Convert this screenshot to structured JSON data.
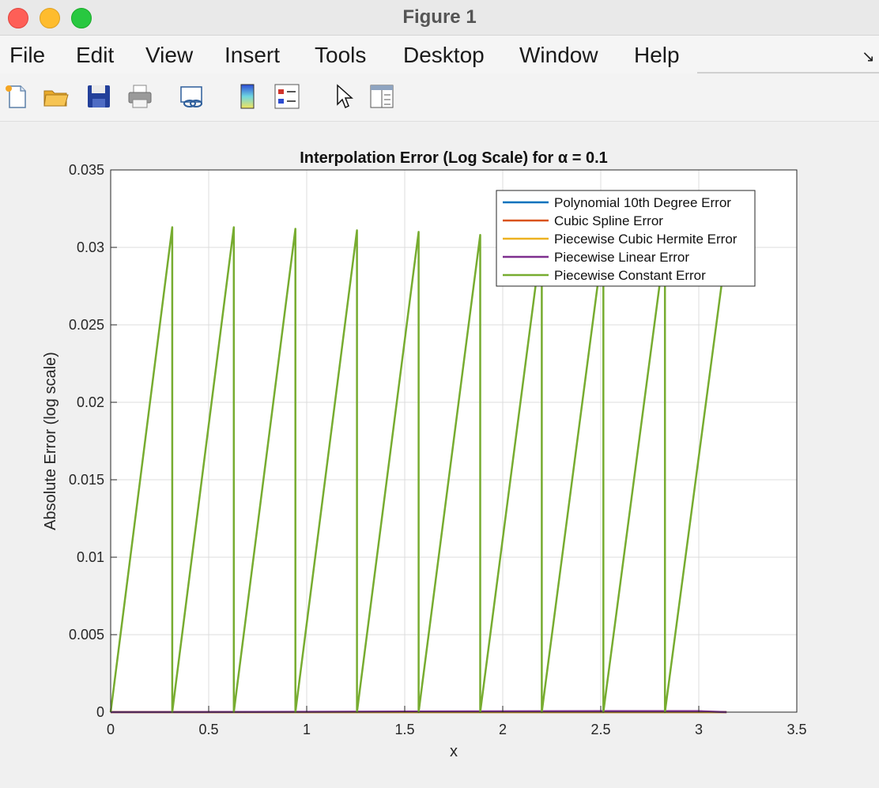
{
  "window": {
    "title": "Figure 1"
  },
  "menu": [
    "File",
    "Edit",
    "View",
    "Insert",
    "Tools",
    "Desktop",
    "Window",
    "Help"
  ],
  "toolbar": [
    "new-figure-icon",
    "open-file-icon",
    "save-icon",
    "print-icon",
    "link-plot-icon",
    "colorbar-icon",
    "legend-icon",
    "pointer-icon",
    "property-inspector-icon"
  ],
  "chart_data": {
    "type": "line",
    "title": "Interpolation Error (Log Scale) for α = 0.1",
    "xlabel": "x",
    "ylabel": "Absolute Error (log scale)",
    "xlim": [
      0,
      3.5
    ],
    "ylim": [
      0,
      0.035
    ],
    "xticks": [
      "0",
      "0.5",
      "1",
      "1.5",
      "2",
      "2.5",
      "3",
      "3.5"
    ],
    "yticks": [
      "0",
      "0.005",
      "0.01",
      "0.015",
      "0.02",
      "0.025",
      "0.03",
      "0.035"
    ],
    "grid": true,
    "legend_position": "top-right",
    "series": [
      {
        "name": "Polynomial 10th Degree Error",
        "color": "#0072BD",
        "x": [
          0,
          3.1416
        ],
        "y": [
          0,
          0
        ]
      },
      {
        "name": "Cubic Spline Error",
        "color": "#D95319",
        "x": [
          0,
          3.1416
        ],
        "y": [
          0,
          0
        ]
      },
      {
        "name": "Piecewise Cubic Hermite Error",
        "color": "#EDB120",
        "x": [
          0,
          3.1416
        ],
        "y": [
          0,
          0
        ]
      },
      {
        "name": "Piecewise Linear Error",
        "color": "#7E2F8E",
        "x": [
          0,
          1.0,
          2.0,
          2.5,
          3.0,
          3.1416
        ],
        "y": [
          0,
          2e-05,
          5e-05,
          6e-05,
          6e-05,
          0
        ]
      },
      {
        "name": "Piecewise Constant Error",
        "color": "#77AC30",
        "x": [
          0,
          0.3142,
          0.3142,
          0.6283,
          0.6283,
          0.9425,
          0.9425,
          1.2566,
          1.2566,
          1.5708,
          1.5708,
          1.885,
          1.885,
          2.1991,
          2.1991,
          2.5133,
          2.5133,
          2.8274,
          2.8274,
          3.1416
        ],
        "y": [
          0,
          0.0313,
          0,
          0.0313,
          0,
          0.0312,
          0,
          0.0311,
          0,
          0.031,
          0,
          0.0308,
          0,
          0.0306,
          0,
          0.0304,
          0,
          0.0302,
          0,
          0.03
        ]
      }
    ]
  }
}
